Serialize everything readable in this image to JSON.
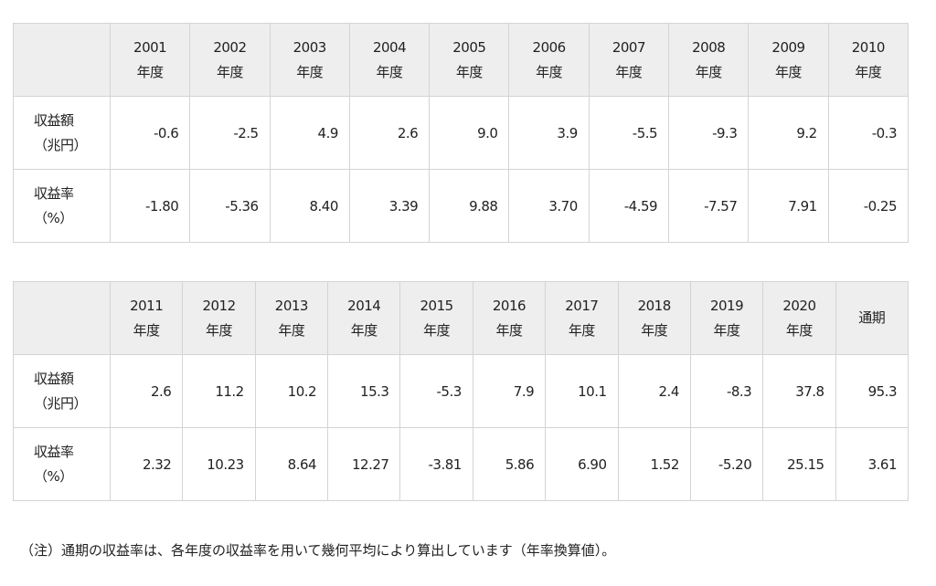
{
  "tables": [
    {
      "header": [
        [
          "2001",
          "年度"
        ],
        [
          "2002",
          "年度"
        ],
        [
          "2003",
          "年度"
        ],
        [
          "2004",
          "年度"
        ],
        [
          "2005",
          "年度"
        ],
        [
          "2006",
          "年度"
        ],
        [
          "2007",
          "年度"
        ],
        [
          "2008",
          "年度"
        ],
        [
          "2009",
          "年度"
        ],
        [
          "2010",
          "年度"
        ]
      ],
      "rows": [
        {
          "label": [
            "収益額",
            "（兆円）"
          ],
          "cells": [
            "-0.6",
            "-2.5",
            "4.9",
            "2.6",
            "9.0",
            "3.9",
            "-5.5",
            "-9.3",
            "9.2",
            "-0.3"
          ]
        },
        {
          "label": [
            "収益率",
            "（%）"
          ],
          "cells": [
            "-1.80",
            "-5.36",
            "8.40",
            "3.39",
            "9.88",
            "3.70",
            "-4.59",
            "-7.57",
            "7.91",
            "-0.25"
          ]
        }
      ]
    },
    {
      "header": [
        [
          "2011",
          "年度"
        ],
        [
          "2012",
          "年度"
        ],
        [
          "2013",
          "年度"
        ],
        [
          "2014",
          "年度"
        ],
        [
          "2015",
          "年度"
        ],
        [
          "2016",
          "年度"
        ],
        [
          "2017",
          "年度"
        ],
        [
          "2018",
          "年度"
        ],
        [
          "2019",
          "年度"
        ],
        [
          "2020",
          "年度"
        ],
        [
          "通期"
        ]
      ],
      "rows": [
        {
          "label": [
            "収益額",
            "（兆円）"
          ],
          "cells": [
            "2.6",
            "11.2",
            "10.2",
            "15.3",
            "-5.3",
            "7.9",
            "10.1",
            "2.4",
            "-8.3",
            "37.8",
            "95.3"
          ]
        },
        {
          "label": [
            "収益率",
            "（%）"
          ],
          "cells": [
            "2.32",
            "10.23",
            "8.64",
            "12.27",
            "-3.81",
            "5.86",
            "6.90",
            "1.52",
            "-5.20",
            "25.15",
            "3.61"
          ]
        }
      ]
    }
  ],
  "note": "（注）通期の収益率は、各年度の収益率を用いて幾何平均により算出しています（年率換算値）。"
}
